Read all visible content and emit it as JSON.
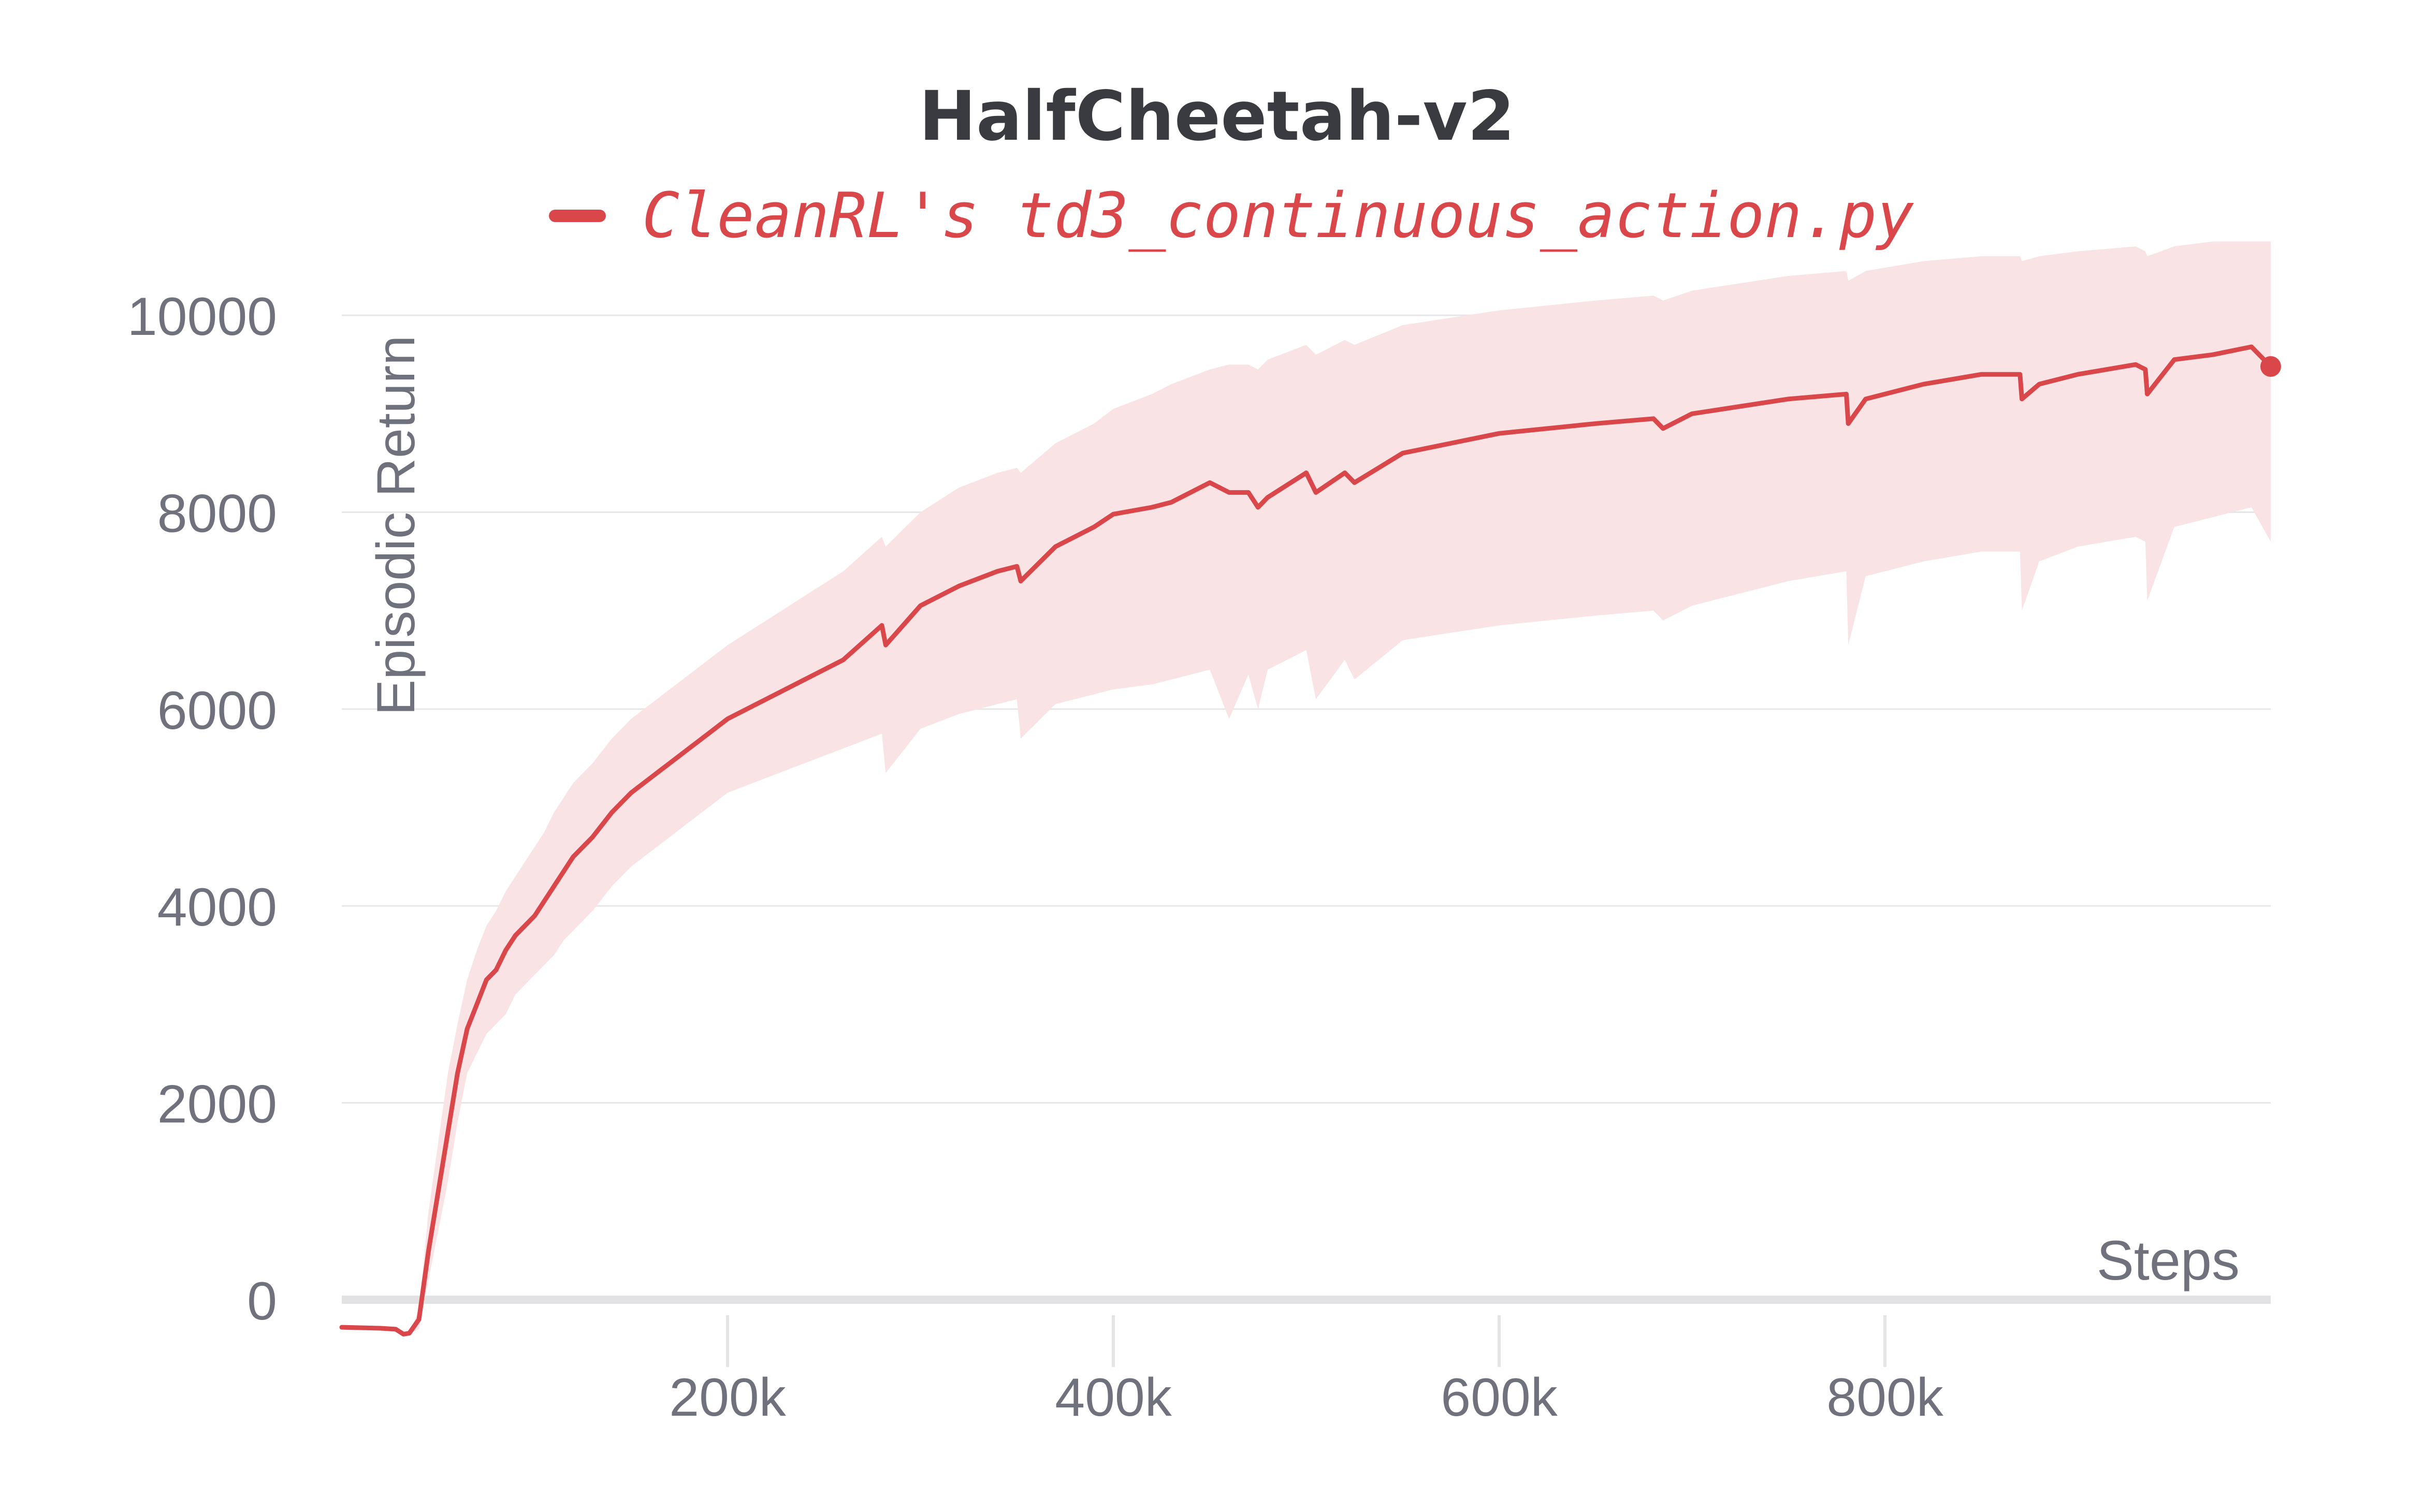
{
  "chart_data": {
    "type": "line",
    "title": "HalfCheetah-v2",
    "xlabel": "Steps",
    "ylabel": "Episodic Return",
    "xlim": [
      0,
      1000000
    ],
    "ylim": [
      -600,
      10600
    ],
    "x_ticks": [
      200000,
      400000,
      600000,
      800000
    ],
    "x_tick_labels": [
      "200k",
      "400k",
      "600k",
      "800k"
    ],
    "y_ticks": [
      0,
      2000,
      4000,
      6000,
      8000,
      10000
    ],
    "y_tick_labels": [
      "0",
      "2000",
      "4000",
      "6000",
      "8000",
      "10000"
    ],
    "grid": true,
    "legend_position": "top",
    "series": [
      {
        "name": "CleanRL's td3_continuous_action.py",
        "color": "#d9474b",
        "band_color": "#f9e3e4",
        "x": [
          0,
          20000,
          28000,
          32000,
          35000,
          40000,
          45000,
          50000,
          55000,
          60000,
          65000,
          70000,
          75000,
          80000,
          85000,
          90000,
          95000,
          100000,
          105000,
          110000,
          115000,
          120000,
          130000,
          140000,
          150000,
          160000,
          170000,
          180000,
          190000,
          200000,
          220000,
          240000,
          260000,
          280000,
          282000,
          300000,
          320000,
          340000,
          350000,
          352000,
          370000,
          390000,
          400000,
          420000,
          430000,
          450000,
          460000,
          470000,
          475000,
          480000,
          500000,
          505000,
          520000,
          525000,
          550000,
          600000,
          650000,
          680000,
          685000,
          700000,
          750000,
          780000,
          781000,
          790000,
          820000,
          850000,
          870000,
          871000,
          880000,
          900000,
          930000,
          935000,
          936000,
          950000,
          970000,
          990000,
          1000000
        ],
        "y": [
          -280,
          -290,
          -300,
          -350,
          -340,
          -200,
          500,
          1100,
          1700,
          2300,
          2750,
          3000,
          3250,
          3350,
          3550,
          3700,
          3800,
          3900,
          4050,
          4200,
          4350,
          4500,
          4700,
          4950,
          5150,
          5300,
          5450,
          5600,
          5750,
          5900,
          6100,
          6300,
          6500,
          6850,
          6650,
          7050,
          7250,
          7400,
          7450,
          7300,
          7650,
          7850,
          7980,
          8050,
          8100,
          8300,
          8200,
          8200,
          8050,
          8150,
          8400,
          8200,
          8400,
          8300,
          8600,
          8800,
          8900,
          8950,
          8850,
          9000,
          9150,
          9200,
          8900,
          9150,
          9300,
          9400,
          9400,
          9150,
          9300,
          9400,
          9500,
          9450,
          9200,
          9550,
          9600,
          9680,
          9480
        ],
        "upper": [
          -280,
          -290,
          -300,
          -350,
          -340,
          -100,
          900,
          1600,
          2300,
          2800,
          3250,
          3550,
          3800,
          3950,
          4150,
          4300,
          4450,
          4600,
          4750,
          4950,
          5100,
          5250,
          5450,
          5700,
          5900,
          6050,
          6200,
          6350,
          6500,
          6650,
          6900,
          7150,
          7400,
          7750,
          7650,
          8000,
          8250,
          8400,
          8450,
          8400,
          8700,
          8900,
          9050,
          9200,
          9300,
          9450,
          9500,
          9500,
          9450,
          9550,
          9700,
          9600,
          9750,
          9700,
          9900,
          10050,
          10150,
          10200,
          10150,
          10250,
          10400,
          10450,
          10350,
          10450,
          10550,
          10600,
          10600,
          10550,
          10600,
          10650,
          10700,
          10650,
          10600,
          10700,
          10750,
          10750,
          10750
        ],
        "lower": [
          -280,
          -290,
          -300,
          -350,
          -340,
          -300,
          200,
          700,
          1200,
          1800,
          2300,
          2500,
          2700,
          2800,
          2900,
          3100,
          3200,
          3300,
          3400,
          3500,
          3650,
          3750,
          3950,
          4200,
          4400,
          4550,
          4700,
          4850,
          5000,
          5150,
          5300,
          5450,
          5600,
          5750,
          5350,
          5800,
          5950,
          6050,
          6100,
          5700,
          6050,
          6150,
          6200,
          6250,
          6300,
          6400,
          5900,
          6350,
          6000,
          6400,
          6600,
          6100,
          6500,
          6300,
          6700,
          6850,
          6950,
          7000,
          6900,
          7050,
          7300,
          7400,
          6650,
          7350,
          7500,
          7600,
          7600,
          7000,
          7500,
          7650,
          7750,
          7700,
          7100,
          7850,
          7950,
          8050,
          7700
        ]
      }
    ],
    "end_marker": {
      "x": 1000000,
      "y": 9480
    }
  }
}
